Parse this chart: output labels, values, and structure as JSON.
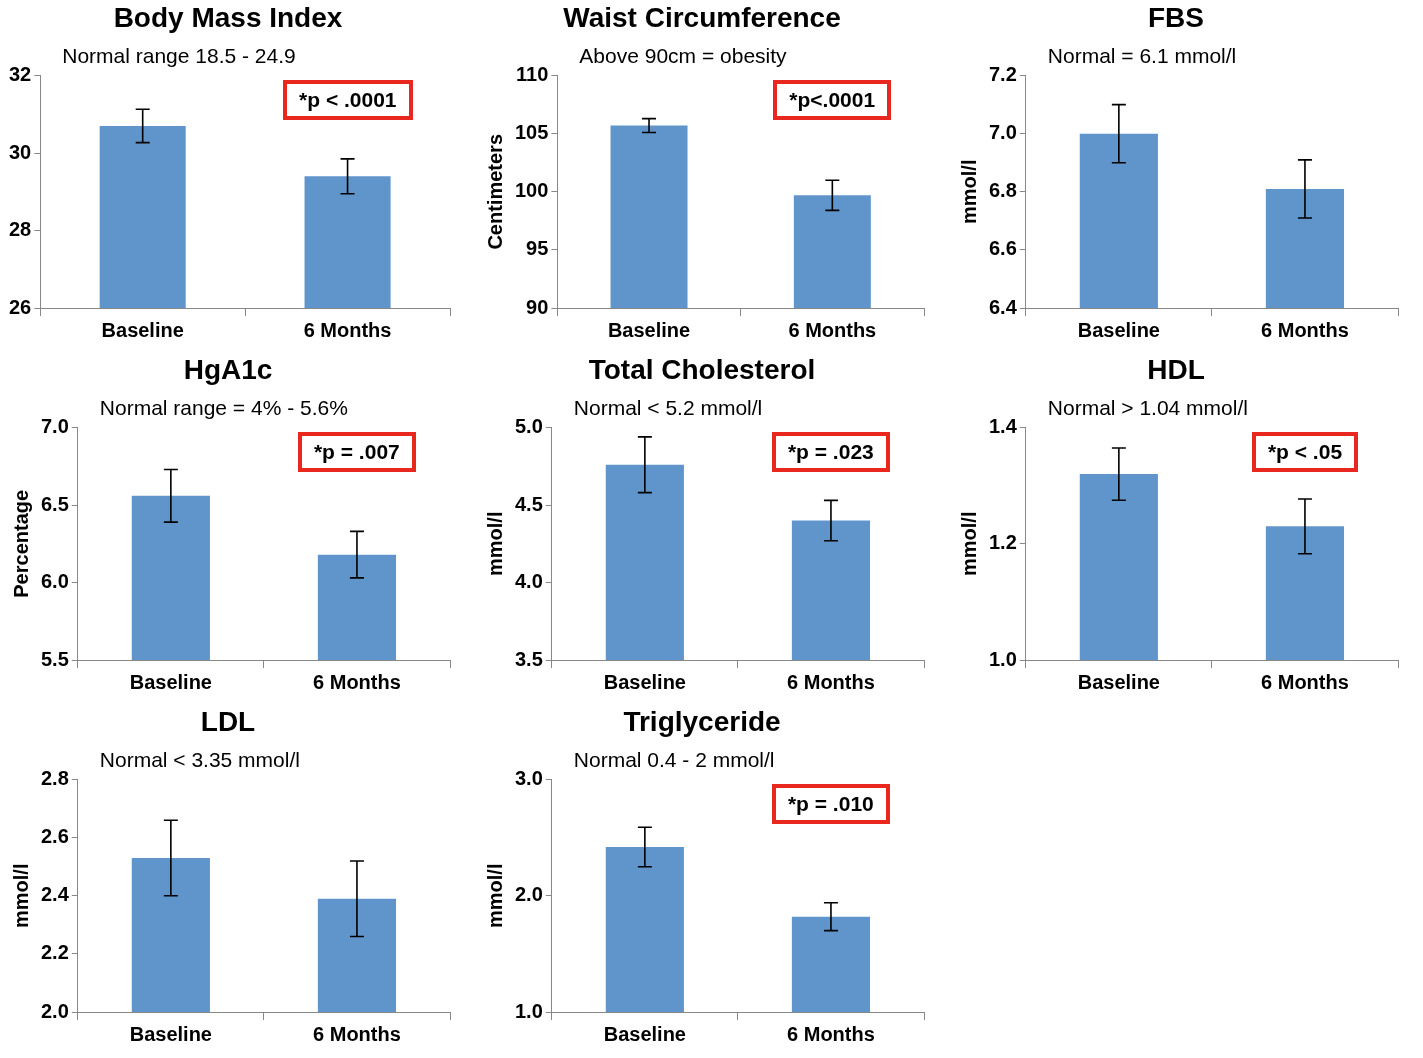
{
  "chart_data": [
    {
      "type": "bar",
      "title": "Body Mass Index",
      "categories": [
        "Baseline",
        "6 Months"
      ],
      "values": [
        30.7,
        29.4
      ],
      "errors": [
        0.43,
        0.45
      ],
      "color": "#5f95ca",
      "ylim": [
        26,
        32
      ],
      "yticks": [
        26,
        28,
        30,
        32
      ],
      "annotations": [
        "Normal range 18.5 - 24.9",
        "*p < .0001"
      ]
    },
    {
      "type": "bar",
      "title": "Waist Circumference",
      "ylabel": "Centimeters",
      "categories": [
        "Baseline",
        "6 Months"
      ],
      "values": [
        105.7,
        99.7
      ],
      "errors": [
        0.6,
        1.3
      ],
      "color": "#5f95ca",
      "ylim": [
        90,
        110
      ],
      "yticks": [
        90,
        95,
        100,
        105,
        110
      ],
      "annotations": [
        "Above 90cm = obesity",
        "*p<.0001"
      ]
    },
    {
      "type": "bar",
      "title": "FBS",
      "ylabel": "mmol/l",
      "categories": [
        "Baseline",
        "6 Months"
      ],
      "values": [
        7.0,
        6.81
      ],
      "errors": [
        0.1,
        0.1
      ],
      "color": "#5f95ca",
      "ylim": [
        6.4,
        7.2
      ],
      "yticks": [
        6.4,
        6.6,
        6.8,
        {
          "value": 7,
          "label": "7.0"
        },
        7.2
      ],
      "annotations": [
        "Normal = 6.1 mmol/l"
      ]
    },
    {
      "type": "bar",
      "title": "HgA1c",
      "ylabel": "Percentage",
      "categories": [
        "Baseline",
        "6 Months"
      ],
      "values": [
        6.56,
        6.18
      ],
      "errors": [
        0.17,
        0.15
      ],
      "color": "#5f95ca",
      "ylim": [
        5.5,
        7
      ],
      "yticks": [
        5.5,
        {
          "value": 6,
          "label": "6.0"
        },
        6.5,
        {
          "value": 7,
          "label": "7.0"
        }
      ],
      "annotations": [
        "Normal range = 4% - 5.6%",
        "*p = .007"
      ]
    },
    {
      "type": "bar",
      "title": "Total Cholesterol",
      "ylabel": "mmol/l",
      "categories": [
        "Baseline",
        "6 Months"
      ],
      "values": [
        4.76,
        4.4
      ],
      "errors": [
        0.18,
        0.13
      ],
      "color": "#5f95ca",
      "ylim": [
        3.5,
        5
      ],
      "yticks": [
        3.5,
        {
          "value": 4,
          "label": "4.0"
        },
        4.5,
        {
          "value": 5,
          "label": "5.0"
        }
      ],
      "annotations": [
        "Normal < 5.2 mmol/l",
        "*p = .023"
      ]
    },
    {
      "type": "bar",
      "title": "HDL",
      "ylabel": "mmol/l",
      "categories": [
        "Baseline",
        "6 Months"
      ],
      "values": [
        1.32,
        1.23
      ],
      "errors": [
        0.045,
        0.047
      ],
      "color": "#5f95ca",
      "ylim": [
        1,
        1.4
      ],
      "yticks": [
        {
          "value": 1,
          "label": "1.0"
        },
        1.2,
        1.4
      ],
      "annotations": [
        "Normal > 1.04 mmol/l",
        "*p < .05"
      ]
    },
    {
      "type": "bar",
      "title": "LDL",
      "ylabel": "mmol/l",
      "categories": [
        "Baseline",
        "6 Months"
      ],
      "values": [
        2.53,
        2.39
      ],
      "errors": [
        0.13,
        0.13
      ],
      "color": "#5f95ca",
      "ylim": [
        2,
        2.8
      ],
      "yticks": [
        {
          "value": 2,
          "label": "2.0"
        },
        2.2,
        2.4,
        2.6,
        2.8
      ],
      "annotations": [
        "Normal < 3.35 mmol/l"
      ]
    },
    {
      "type": "bar",
      "title": "Triglyceride",
      "ylabel": "mmol/l",
      "categories": [
        "Baseline",
        "6 Months"
      ],
      "values": [
        2.42,
        1.82
      ],
      "errors": [
        0.17,
        0.12
      ],
      "color": "#5f95ca",
      "ylim": [
        1,
        3
      ],
      "yticks": [
        {
          "value": 1,
          "label": "1.0"
        },
        {
          "value": 2,
          "label": "2.0"
        },
        {
          "value": 3,
          "label": "3.0"
        }
      ],
      "annotations": [
        "Normal 0.4 - 2 mmol/l",
        "*p = .010"
      ]
    }
  ]
}
